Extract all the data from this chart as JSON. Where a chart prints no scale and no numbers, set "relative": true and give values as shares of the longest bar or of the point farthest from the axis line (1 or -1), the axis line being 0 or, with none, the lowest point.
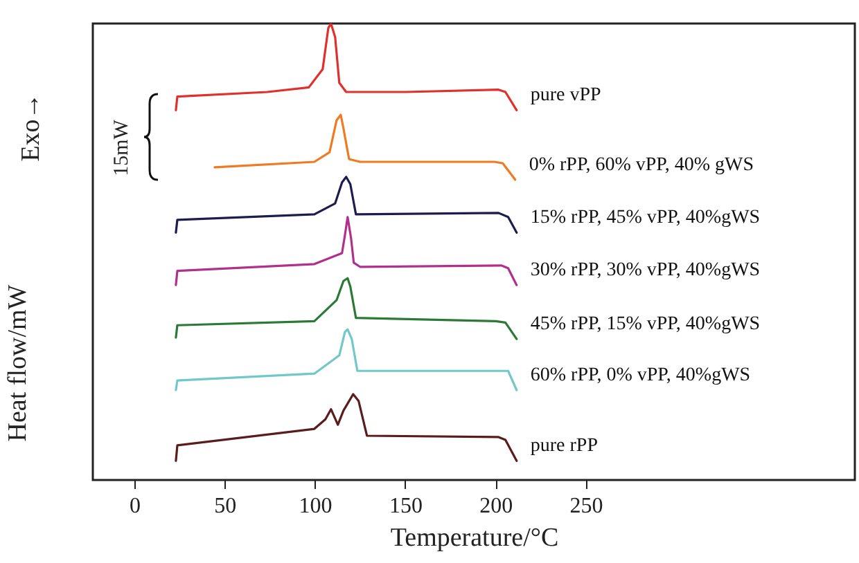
{
  "chart_data": {
    "type": "line",
    "relative": true,
    "xlabel": "Temperature/°C",
    "ylabel": "Heat flow/mW",
    "annotations": [
      "Exo→",
      "15mW"
    ],
    "xlim": [
      -23,
      399
    ],
    "xticks": [
      0,
      50,
      100,
      150,
      200,
      250
    ],
    "grid": false,
    "marker": "none",
    "line_style": "solid",
    "series": [
      {
        "name": "pure vPP",
        "color": "#e0302c",
        "x": [
          23,
          23.8,
          73.6,
          96.6,
          104.3,
          107.4,
          108.9,
          111.2,
          113.5,
          117.3,
          150.3,
          201.7,
          205.5,
          211.7
        ],
        "values": [
          0.81,
          0.84,
          0.85,
          0.86,
          0.9,
          0.99,
          1.0,
          0.97,
          0.87,
          0.85,
          0.85,
          0.855,
          0.85,
          0.81
        ]
      },
      {
        "name": "0% rPP, 60% vPP, 40% gWS",
        "color": "#f07a22",
        "x": [
          44.5,
          99.7,
          108.1,
          112,
          114.3,
          115.8,
          118.9,
          125,
          199.4,
          204,
          210.9
        ],
        "values": [
          0.685,
          0.697,
          0.718,
          0.788,
          0.8,
          0.77,
          0.703,
          0.697,
          0.697,
          0.694,
          0.658
        ]
      },
      {
        "name": "15% rPP, 45% vPP, 40%gWS",
        "color": "#1c1c4e",
        "x": [
          23,
          23.8,
          99.7,
          111.2,
          115,
          117.3,
          119.6,
          122.7,
          201.7,
          207,
          211.7
        ],
        "values": [
          0.542,
          0.57,
          0.582,
          0.606,
          0.652,
          0.664,
          0.648,
          0.582,
          0.585,
          0.576,
          0.542
        ]
      },
      {
        "name": "30% rPP, 30% vPP, 40%gWS",
        "color": "#b0308c",
        "x": [
          23,
          23.8,
          99.7,
          115,
          116.6,
          118.1,
          120,
          121.5,
          125,
          203.2,
          207,
          211.7
        ],
        "values": [
          0.427,
          0.458,
          0.473,
          0.497,
          0.536,
          0.576,
          0.53,
          0.476,
          0.467,
          0.47,
          0.464,
          0.427
        ]
      },
      {
        "name": "45% rPP, 15% vPP, 40%gWS",
        "color": "#2a7a36",
        "x": [
          23,
          23.8,
          99.7,
          112,
          115.8,
          118.1,
          119.6,
          122.7,
          200.2,
          205.5,
          211.7
        ],
        "values": [
          0.312,
          0.339,
          0.348,
          0.394,
          0.436,
          0.442,
          0.424,
          0.355,
          0.348,
          0.345,
          0.309
        ]
      },
      {
        "name": "60% rPP, 0% vPP, 40%gWS",
        "color": "#72c8c8",
        "x": [
          23,
          23.8,
          99.7,
          113.5,
          116.6,
          118.1,
          120.4,
          123.5,
          207,
          211.7
        ],
        "values": [
          0.197,
          0.218,
          0.233,
          0.273,
          0.324,
          0.33,
          0.309,
          0.239,
          0.239,
          0.197
        ]
      },
      {
        "name": "pure rPP",
        "color": "#5a1c1c",
        "x": [
          23,
          23.8,
          99.7,
          105.8,
          108.9,
          112.7,
          115.8,
          121.2,
          124.2,
          128.8,
          201.7,
          205.5,
          211.7
        ],
        "values": [
          0.042,
          0.076,
          0.112,
          0.133,
          0.155,
          0.121,
          0.152,
          0.188,
          0.173,
          0.097,
          0.094,
          0.088,
          0.042
        ]
      }
    ]
  }
}
